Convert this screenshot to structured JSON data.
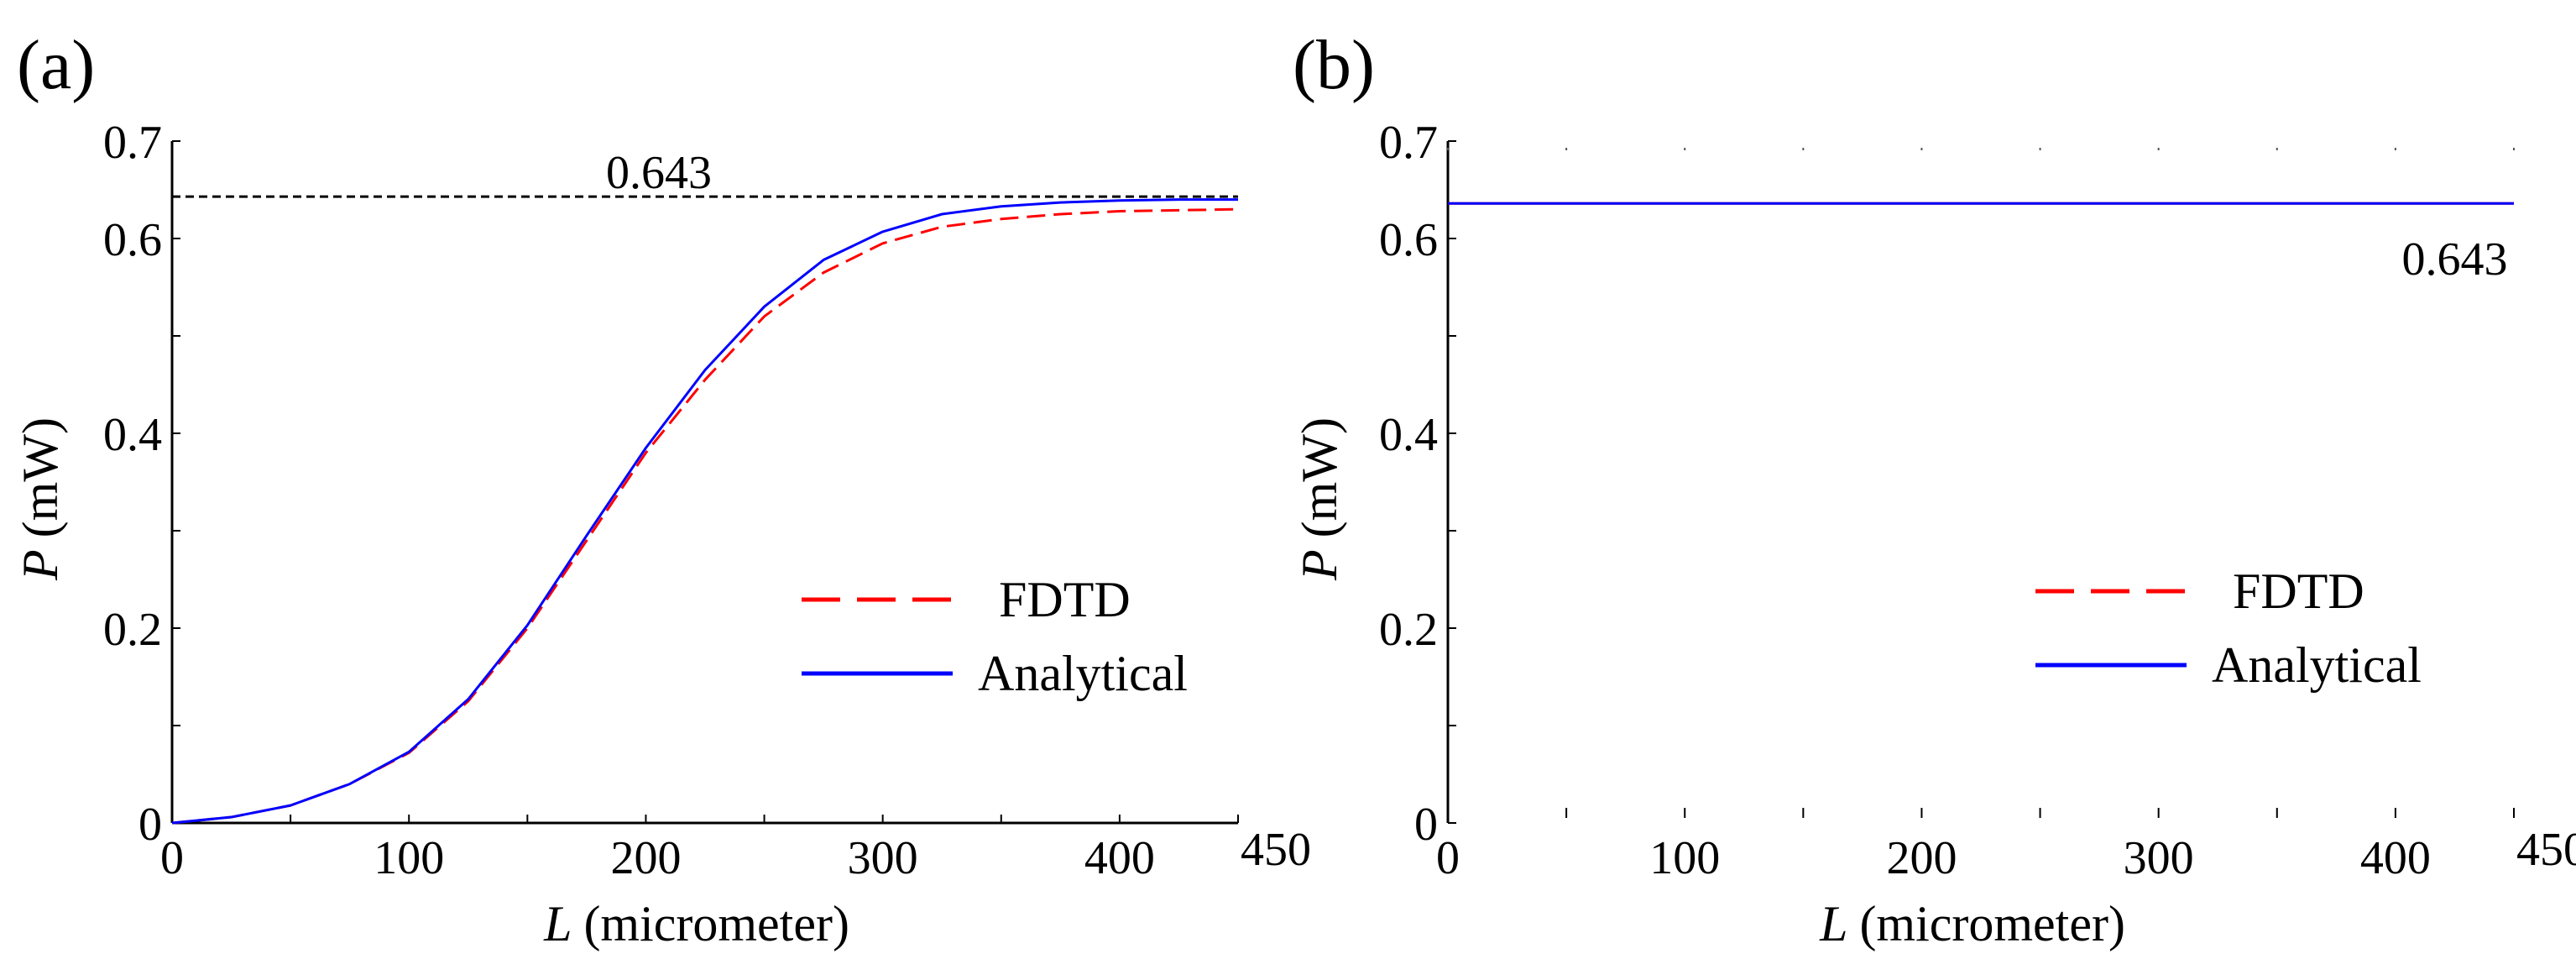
{
  "colors": {
    "fdtd": "#ff0000",
    "analytical": "#0000ff",
    "axis": "#000000",
    "reference": "#000000"
  },
  "chart_data": [
    {
      "panel": "(a)",
      "type": "line",
      "xlabel_var": "L",
      "xlabel_unit": "(micrometer)",
      "ylabel_var": "P",
      "ylabel_unit": "(mW)",
      "xlim": [
        0,
        450
      ],
      "ylim": [
        0,
        0.7
      ],
      "xticks": [
        0,
        50,
        100,
        150,
        200,
        250,
        300,
        350,
        400,
        450
      ],
      "xtick_labels": [
        {
          "value": 0,
          "label": "0"
        },
        {
          "value": 100,
          "label": "100"
        },
        {
          "value": 200,
          "label": "200"
        },
        {
          "value": 300,
          "label": "300"
        },
        {
          "value": 400,
          "label": "400"
        },
        {
          "value": 450,
          "label": "450"
        }
      ],
      "yticks": [
        0,
        0.1,
        0.2,
        0.3,
        0.4,
        0.5,
        0.6,
        0.7
      ],
      "ytick_labels": [
        {
          "value": 0,
          "label": "0"
        },
        {
          "value": 0.2,
          "label": "0.2"
        },
        {
          "value": 0.4,
          "label": "0.4"
        },
        {
          "value": 0.6,
          "label": "0.6"
        },
        {
          "value": 0.7,
          "label": "0.7"
        }
      ],
      "reference_line": {
        "y": 0.643,
        "label": "0.643"
      },
      "legend": {
        "location": "center-right",
        "entries": [
          "FDTD",
          "Analytical"
        ]
      },
      "series": [
        {
          "name": "FDTD",
          "style": "dashed",
          "x": [
            0,
            25,
            50,
            75,
            100,
            125,
            150,
            175,
            200,
            225,
            250,
            275,
            300,
            325,
            350,
            375,
            400,
            425,
            450
          ],
          "y": [
            0.0,
            0.006,
            0.018,
            0.04,
            0.072,
            0.125,
            0.2,
            0.29,
            0.38,
            0.455,
            0.52,
            0.565,
            0.595,
            0.612,
            0.62,
            0.625,
            0.628,
            0.629,
            0.63
          ]
        },
        {
          "name": "Analytical",
          "style": "solid",
          "x": [
            0,
            25,
            50,
            75,
            100,
            125,
            150,
            175,
            200,
            225,
            250,
            275,
            300,
            325,
            350,
            375,
            400,
            425,
            450
          ],
          "y": [
            0.0,
            0.006,
            0.018,
            0.04,
            0.073,
            0.127,
            0.203,
            0.295,
            0.385,
            0.465,
            0.53,
            0.578,
            0.607,
            0.625,
            0.633,
            0.637,
            0.639,
            0.64,
            0.64
          ]
        }
      ]
    },
    {
      "panel": "(b)",
      "type": "line",
      "xlabel_var": "L",
      "xlabel_unit": "(micrometer)",
      "ylabel_var": "P",
      "ylabel_unit": "(mW)",
      "xlim": [
        0,
        450
      ],
      "ylim": [
        0,
        0.7
      ],
      "xticks": [
        0,
        50,
        100,
        150,
        200,
        250,
        300,
        350,
        400,
        450
      ],
      "xtick_labels": [
        {
          "value": 0,
          "label": "0"
        },
        {
          "value": 100,
          "label": "100"
        },
        {
          "value": 200,
          "label": "200"
        },
        {
          "value": 300,
          "label": "300"
        },
        {
          "value": 400,
          "label": "400"
        },
        {
          "value": 450,
          "label": "450"
        }
      ],
      "yticks": [
        0,
        0.1,
        0.2,
        0.3,
        0.4,
        0.5,
        0.6,
        0.7
      ],
      "ytick_labels": [
        {
          "value": 0,
          "label": "0"
        },
        {
          "value": 0.2,
          "label": "0.2"
        },
        {
          "value": 0.4,
          "label": "0.4"
        },
        {
          "value": 0.6,
          "label": "0.6"
        },
        {
          "value": 0.7,
          "label": "0.7"
        }
      ],
      "value_annotation": {
        "label": "0.643",
        "x": 425,
        "y": 0.58
      },
      "legend": {
        "location": "center-right",
        "entries": [
          "FDTD",
          "Analytical"
        ]
      },
      "series": [
        {
          "name": "FDTD",
          "style": "dashed",
          "x": [
            0,
            450
          ],
          "y": [
            0.636,
            0.636
          ]
        },
        {
          "name": "Analytical",
          "style": "solid",
          "x": [
            0,
            450
          ],
          "y": [
            0.636,
            0.636
          ]
        }
      ]
    }
  ]
}
